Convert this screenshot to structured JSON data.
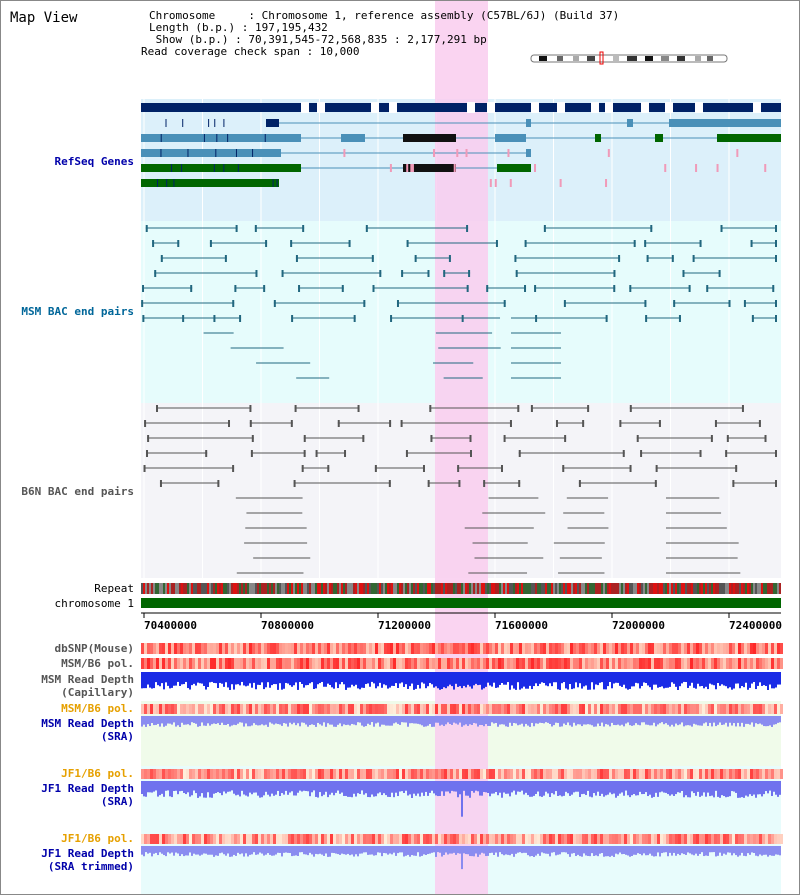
{
  "title": "Map View",
  "header": {
    "chromosome_line": "Chromosome     : Chromosome 1, reference assembly (C57BL/6J) (Build 37)",
    "length_line": "Length (b.p.) : 197,195,432",
    "show_line": " Show (b.p.) : 70,391,545-72,568,835 : 2,177,291 bp",
    "span_line": "Read coverage check span : 10,000"
  },
  "tracks": {
    "refseq": "RefSeq Genes",
    "msm_bac": "MSM BAC end pairs",
    "b6n_bac": "B6N BAC end pairs",
    "repeat": "Repeat",
    "chromosome": "chromosome 1",
    "dbsnp": "dbSNP(Mouse)",
    "msm_b6_pol_1": "MSM/B6 pol.",
    "msm_read_depth_cap": "MSM Read Depth\n(Capillary)",
    "msm_b6_pol_2": "MSM/B6 pol.",
    "msm_read_depth_sra": "MSM Read Depth\n(SRA)",
    "jf1_b6_pol_1": "JF1/B6 pol.",
    "jf1_read_depth_sra": "JF1 Read Depth\n(SRA)",
    "jf1_b6_pol_2": "JF1/B6 pol.",
    "jf1_read_depth_trim": "JF1 Read Depth\n(SRA trimmed)"
  },
  "axis": {
    "ticks": [
      "70400000",
      "70800000",
      "71200000",
      "71600000",
      "72000000",
      "72400000"
    ]
  },
  "colors": {
    "refseq_label": "#0000aa",
    "msm_label": "#006699",
    "b6n_label": "#555555",
    "orange_label": "#e6a000",
    "blue_label": "#0000aa",
    "highlight": "#f9cdee",
    "refseq_bg": "#dcf0fa",
    "msm_bg": "#e6fcfc",
    "b6n_bg": "#f4f4f8"
  }
}
